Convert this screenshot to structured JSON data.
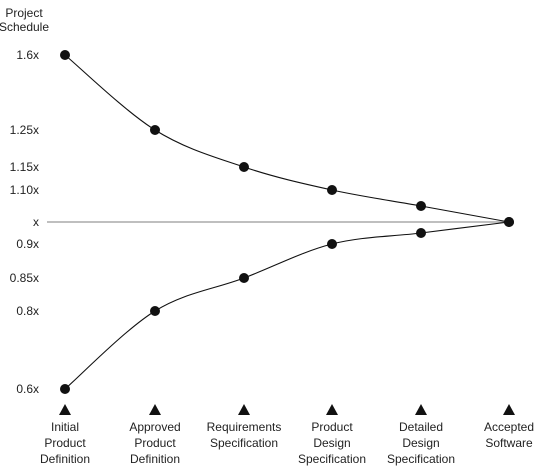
{
  "chart_data": {
    "type": "line",
    "ylabel": [
      "Project",
      "Schedule"
    ],
    "x_categories": [
      [
        "Initial",
        "Product",
        "Definition"
      ],
      [
        "Approved",
        "Product",
        "Definition"
      ],
      [
        "Requirements",
        "Specification"
      ],
      [
        "Product",
        "Design",
        "Specification"
      ],
      [
        "Detailed",
        "Design",
        "Specification"
      ],
      [
        "Accepted",
        "Software"
      ]
    ],
    "y_ticks": [
      {
        "value": 1.6,
        "label": "1.6x"
      },
      {
        "value": 1.25,
        "label": "1.25x"
      },
      {
        "value": 1.15,
        "label": "1.15x"
      },
      {
        "value": 1.1,
        "label": "1.10x"
      },
      {
        "value": 1.0,
        "label": "x"
      },
      {
        "value": 0.9,
        "label": "0.9x"
      },
      {
        "value": 0.85,
        "label": "0.85x"
      },
      {
        "value": 0.8,
        "label": "0.8x"
      },
      {
        "value": 0.6,
        "label": "0.6x"
      }
    ],
    "series": [
      {
        "values": [
          1.6,
          1.25,
          1.15,
          1.1,
          1.05,
          1.0
        ]
      },
      {
        "values": [
          0.6,
          0.8,
          0.85,
          0.9,
          0.95,
          1.0
        ]
      }
    ],
    "reference_line": 1.0,
    "grid": false,
    "legend": "none"
  }
}
